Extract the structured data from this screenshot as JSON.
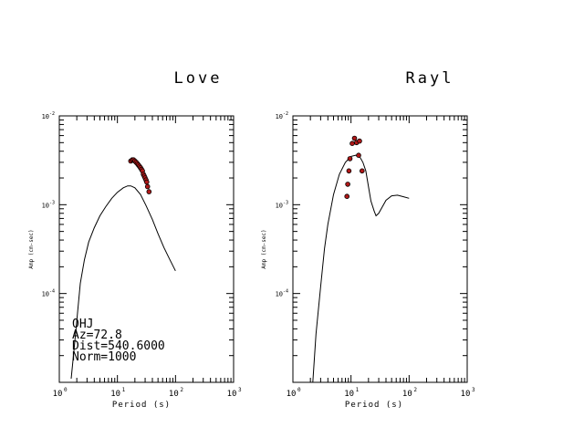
{
  "chart_data": [
    {
      "type": "scatter",
      "title": "Love",
      "xlabel": "Period (s)",
      "ylabel": "Amp (cm-sec)",
      "x_scale": "log",
      "y_scale": "log",
      "xlim": [
        1,
        1000
      ],
      "ylim": [
        1e-05,
        0.01
      ],
      "x_ticks": [
        {
          "base": "10",
          "exp": "0"
        },
        {
          "base": "10",
          "exp": "1"
        },
        {
          "base": "10",
          "exp": "2"
        },
        {
          "base": "10",
          "exp": "3"
        }
      ],
      "y_ticks": [
        {
          "value": 0.01,
          "base": "10",
          "exp": "-2"
        },
        {
          "value": 0.001,
          "base": "10",
          "exp": "-3"
        },
        {
          "value": 0.0001,
          "base": "10",
          "exp": "-4"
        }
      ],
      "curve": {
        "x": [
          1.6,
          1.75,
          2,
          2.3,
          2.7,
          3.2,
          4,
          5,
          6.3,
          8,
          10,
          12.6,
          15,
          17,
          20,
          25,
          31,
          40,
          50,
          63,
          80,
          100
        ],
        "y": [
          1.1e-05,
          2e-05,
          5e-05,
          0.00013,
          0.00024,
          0.00038,
          0.00055,
          0.00075,
          0.00095,
          0.00118,
          0.00138,
          0.00155,
          0.00163,
          0.00163,
          0.00155,
          0.0013,
          0.00098,
          0.00068,
          0.00047,
          0.00033,
          0.00024,
          0.00018
        ]
      },
      "points": {
        "x": [
          17,
          18,
          19,
          20,
          21,
          22,
          23,
          24,
          25,
          26,
          27,
          28,
          29,
          30,
          31,
          32,
          33,
          35
        ],
        "y": [
          0.0031,
          0.0032,
          0.0032,
          0.0031,
          0.003,
          0.0029,
          0.0028,
          0.0027,
          0.0026,
          0.0025,
          0.0024,
          0.0022,
          0.0021,
          0.002,
          0.0019,
          0.0018,
          0.0016,
          0.0014
        ]
      },
      "annotations": [
        "OHJ",
        "Az=72.8",
        "Dist=540.6000",
        "Norm=1000"
      ]
    },
    {
      "type": "scatter",
      "title": "Rayl",
      "xlabel": "Period (s)",
      "ylabel": "Amp (cm-sec)",
      "x_scale": "log",
      "y_scale": "log",
      "xlim": [
        1,
        1000
      ],
      "ylim": [
        1e-05,
        0.01
      ],
      "x_ticks": [
        {
          "base": "10",
          "exp": "0"
        },
        {
          "base": "10",
          "exp": "1"
        },
        {
          "base": "10",
          "exp": "2"
        },
        {
          "base": "10",
          "exp": "3"
        }
      ],
      "y_ticks": [
        {
          "value": 0.01,
          "base": "10",
          "exp": "-2"
        },
        {
          "value": 0.001,
          "base": "10",
          "exp": "-3"
        },
        {
          "value": 0.0001,
          "base": "10",
          "exp": "-4"
        }
      ],
      "curve": {
        "x": [
          2.2,
          2.5,
          3,
          3.5,
          4,
          5,
          6.3,
          8,
          10,
          12,
          14,
          16,
          18,
          20,
          22,
          25,
          27,
          30,
          35,
          40,
          50,
          63,
          80,
          100
        ],
        "y": [
          1e-05,
          3.5e-05,
          0.00012,
          0.00032,
          0.0006,
          0.0013,
          0.0022,
          0.003,
          0.0035,
          0.0036,
          0.0035,
          0.003,
          0.0024,
          0.0016,
          0.0011,
          0.00085,
          0.00075,
          0.0008,
          0.00096,
          0.00112,
          0.00126,
          0.00128,
          0.00123,
          0.00118
        ]
      },
      "points": {
        "x": [
          8.5,
          8.8,
          9.2,
          9.6,
          10.5,
          11.5,
          12.5,
          13.5,
          14,
          15.5
        ],
        "y": [
          0.00124,
          0.0017,
          0.0024,
          0.0033,
          0.0049,
          0.0056,
          0.005,
          0.0036,
          0.0052,
          0.0024
        ]
      },
      "annotations": []
    }
  ]
}
